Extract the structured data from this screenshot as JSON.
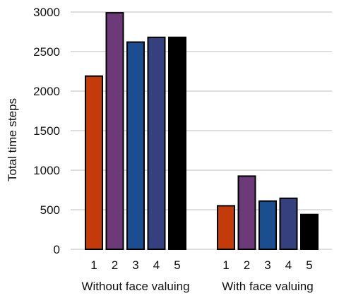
{
  "chart_data": {
    "type": "bar",
    "title": "",
    "ylabel": "Total time steps",
    "ylim": [
      0,
      3000
    ],
    "yticks": [
      0,
      500,
      1000,
      1500,
      2000,
      2500,
      3000
    ],
    "grid": true,
    "colors": [
      "#c43a0a",
      "#6c3a78",
      "#1b4d91",
      "#35417e",
      "#000000"
    ],
    "groups": [
      {
        "name": "Without face valuing",
        "categories": [
          "1",
          "2",
          "3",
          "4",
          "5"
        ],
        "values": [
          2190,
          2990,
          2620,
          2680,
          2680
        ]
      },
      {
        "name": "With face valuing",
        "categories": [
          "1",
          "2",
          "3",
          "4",
          "5"
        ],
        "values": [
          550,
          925,
          610,
          645,
          440
        ]
      }
    ]
  }
}
